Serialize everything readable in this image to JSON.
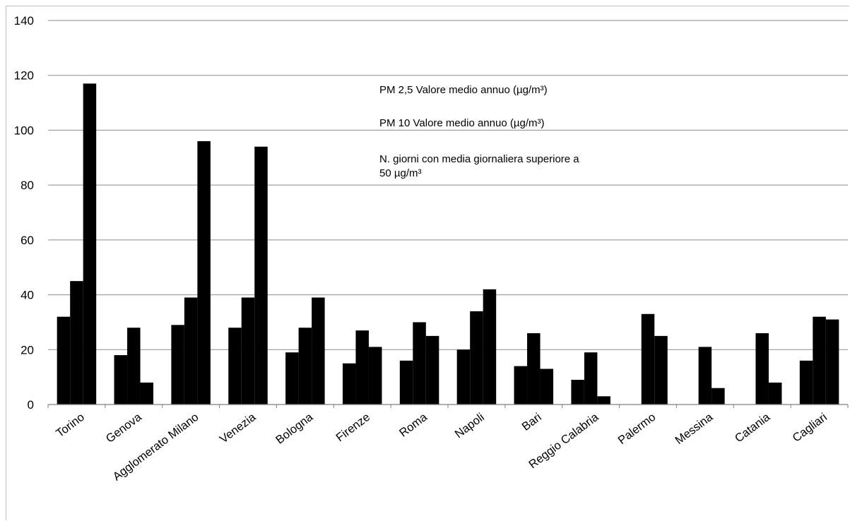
{
  "chart_data": {
    "type": "bar",
    "categories": [
      "Torino",
      "Genova",
      "Agglomerato Milano",
      "Venezia",
      "Bologna",
      "Firenze",
      "Roma",
      "Napoli",
      "Bari",
      "Reggio Calabria",
      "Palermo",
      "Messina",
      "Catania",
      "Cagliari"
    ],
    "series": [
      {
        "name": "PM 2,5 Valore medio annuo (µg/m³)",
        "values": [
          32,
          18,
          29,
          28,
          19,
          15,
          16,
          20,
          14,
          9,
          null,
          null,
          null,
          16
        ]
      },
      {
        "name": "PM 10 Valore medio annuo (µg/m³)",
        "values": [
          45,
          28,
          39,
          39,
          28,
          27,
          30,
          34,
          26,
          19,
          33,
          21,
          26,
          32
        ]
      },
      {
        "name": "N. giorni con media giornaliera superiore a 50 µg/m³",
        "values": [
          117,
          8,
          96,
          94,
          39,
          21,
          25,
          42,
          13,
          3,
          25,
          6,
          8,
          31
        ]
      }
    ],
    "legend_lines": [
      [
        "PM 2,5 Valore medio annuo (µg/m³)"
      ],
      [
        "PM 10 Valore medio annuo (µg/m³)"
      ],
      [
        "N. giorni con media giornaliera superiore a",
        "50 µg/m³"
      ]
    ],
    "ylim": [
      0,
      140
    ],
    "yticks": [
      0,
      20,
      40,
      60,
      80,
      100,
      120,
      140
    ],
    "grid": true,
    "bar_color": "#000000",
    "grid_color": "#8c8c8c",
    "title": "",
    "xlabel": "",
    "ylabel": ""
  }
}
